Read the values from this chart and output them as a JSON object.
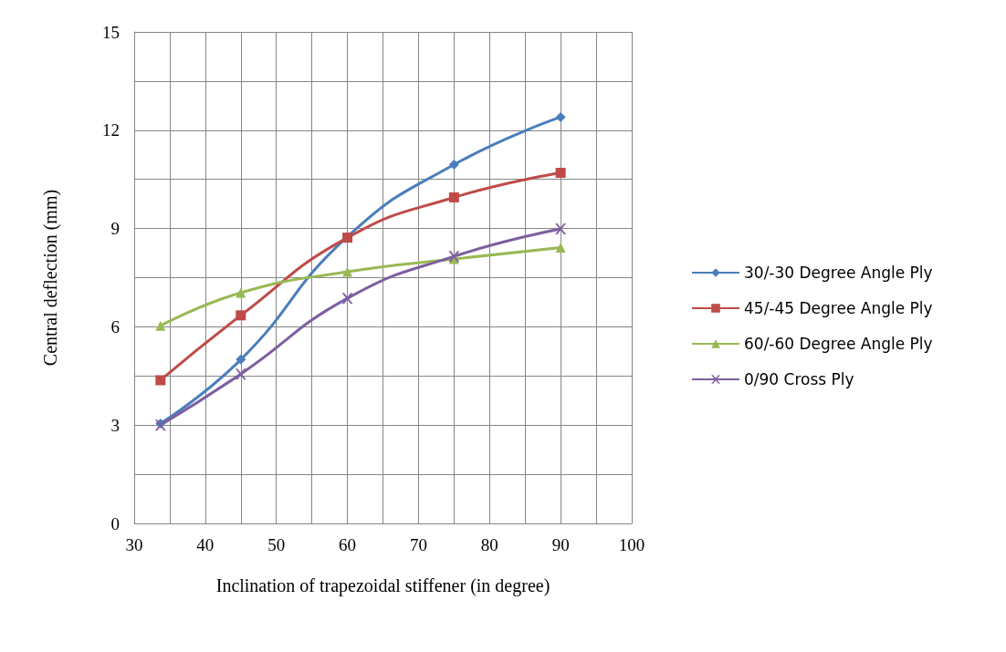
{
  "chart_data": {
    "type": "line",
    "xlabel": "Inclination of trapezoidal stiffener (in degree)",
    "ylabel": "Central deflection (mm)",
    "x": [
      33.7,
      45,
      60,
      75,
      90
    ],
    "series": [
      {
        "name": "30/-30 Degree Angle Ply",
        "color": "#4a7ebb",
        "marker": "diamond",
        "values": [
          3.05,
          5.0,
          8.75,
          10.95,
          12.4
        ]
      },
      {
        "name": "45/-45 Degree Angle Ply",
        "color": "#be4b48",
        "marker": "square",
        "values": [
          4.37,
          6.35,
          8.72,
          9.95,
          10.7
        ]
      },
      {
        "name": "60/-60 Degree Angle Ply",
        "color": "#98b954",
        "marker": "triangle",
        "values": [
          6.03,
          7.04,
          7.68,
          8.07,
          8.42
        ]
      },
      {
        "name": "0/90 Cross Ply",
        "color": "#7d5fa0",
        "marker": "cross",
        "values": [
          3.0,
          4.56,
          6.87,
          8.15,
          8.99
        ]
      }
    ],
    "xlim": [
      30,
      100
    ],
    "xticks": [
      30,
      40,
      50,
      60,
      70,
      80,
      90,
      100
    ],
    "ylim": [
      0,
      15
    ],
    "yticks": [
      0,
      3,
      6,
      9,
      12,
      15
    ],
    "grid": true,
    "legend": "right"
  }
}
